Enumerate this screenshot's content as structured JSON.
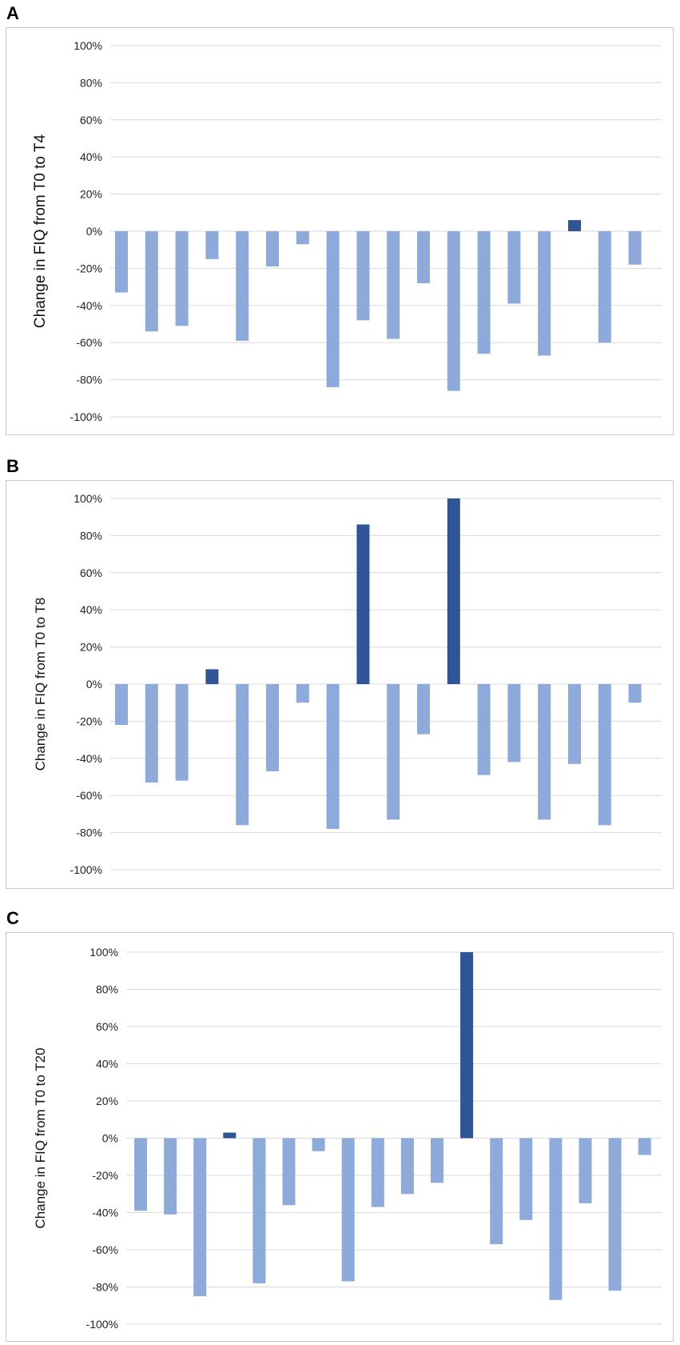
{
  "colors": {
    "negative": "#8eaadb",
    "positive": "#2f5597",
    "grid": "#d9d9d9",
    "frame": "#c8c8c8"
  },
  "panels": [
    {
      "letter": "A"
    },
    {
      "letter": "B"
    },
    {
      "letter": "C"
    }
  ],
  "chart_data": [
    {
      "type": "bar",
      "title": "A",
      "xlabel": "",
      "ylabel": "Change in FIQ from T0 to T4",
      "ylim": [
        -100,
        100
      ],
      "yticks": [
        "100%",
        "80%",
        "60%",
        "40%",
        "20%",
        "0%",
        "-20%",
        "-40%",
        "-60%",
        "-80%",
        "-100%"
      ],
      "grid": true,
      "values": [
        -33,
        -54,
        -51,
        -15,
        -59,
        -19,
        -7,
        -84,
        -48,
        -58,
        -28,
        -86,
        -66,
        -39,
        -67,
        6,
        -60,
        -18
      ]
    },
    {
      "type": "bar",
      "title": "B",
      "xlabel": "",
      "ylabel": "Change in FIQ from T0 to T8",
      "ylim": [
        -100,
        100
      ],
      "yticks": [
        "100%",
        "80%",
        "60%",
        "40%",
        "20%",
        "0%",
        "-20%",
        "-40%",
        "-60%",
        "-80%",
        "-100%"
      ],
      "grid": true,
      "values": [
        -22,
        -53,
        -52,
        8,
        -76,
        -47,
        -10,
        -78,
        86,
        -73,
        -27,
        100,
        -49,
        -42,
        -73,
        -43,
        -76,
        -10
      ]
    },
    {
      "type": "bar",
      "title": "C",
      "xlabel": "",
      "ylabel": "Change in FIQ from T0 to T20",
      "ylim": [
        -100,
        100
      ],
      "yticks": [
        "100%",
        "80%",
        "60%",
        "40%",
        "20%",
        "0%",
        "-20%",
        "-40%",
        "-60%",
        "-80%",
        "-100%"
      ],
      "grid": true,
      "values": [
        -39,
        -41,
        -85,
        3,
        -78,
        -36,
        -7,
        -77,
        -37,
        -30,
        -24,
        100,
        -57,
        -44,
        -87,
        -35,
        -82,
        -9
      ]
    }
  ]
}
